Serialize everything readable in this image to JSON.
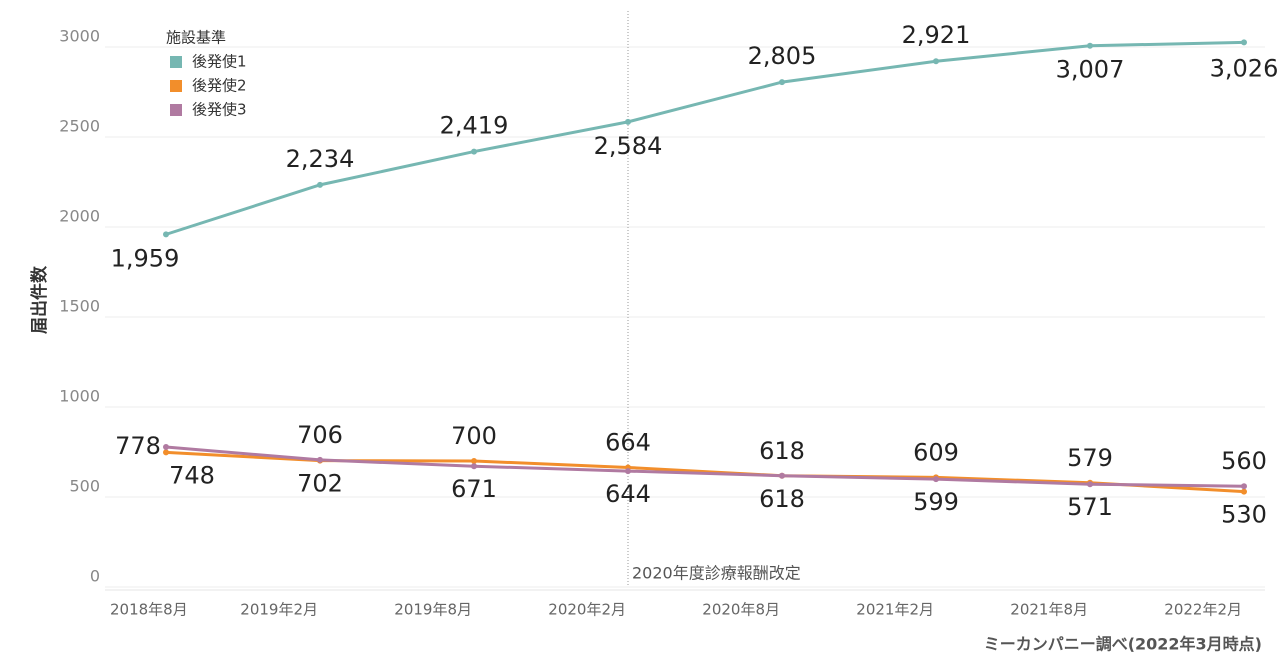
{
  "chart_data": {
    "type": "line",
    "y_label": "届出件数",
    "legend_title": "施設基準",
    "source": "ミーカンパニー調べ(2022年3月時点)",
    "annotation": {
      "text": "2020年度診療報酬改定",
      "x": "2020年2月"
    },
    "categories": [
      "2018年8月",
      "2019年2月",
      "2019年8月",
      "2020年2月",
      "2020年8月",
      "2021年2月",
      "2021年8月",
      "2022年2月"
    ],
    "series": [
      {
        "name": "後発使1",
        "color": "#76b7b2",
        "values": [
          1959,
          2234,
          2419,
          2584,
          2805,
          2921,
          3007,
          3026
        ],
        "value_labels": [
          "1,959",
          "2,234",
          "2,419",
          "2,584",
          "2,805",
          "2,921",
          "3,007",
          "3,026"
        ]
      },
      {
        "name": "後発使2",
        "color": "#f28e2b",
        "values": [
          748,
          702,
          700,
          664,
          618,
          609,
          579,
          530
        ]
      },
      {
        "name": "後発使3",
        "color": "#b07aa1",
        "values": [
          778,
          706,
          671,
          644,
          618,
          599,
          571,
          560
        ]
      }
    ],
    "ylim": [
      0,
      3200
    ],
    "yticks": [
      0,
      500,
      1000,
      1500,
      2000,
      2500,
      3000
    ],
    "grid": true
  }
}
